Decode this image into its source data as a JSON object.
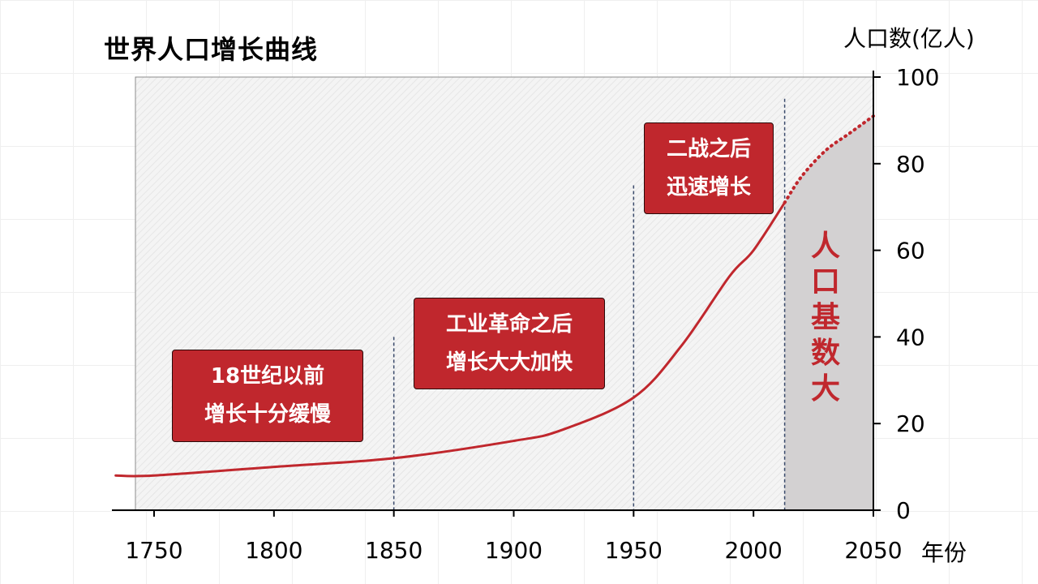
{
  "colors": {
    "accent": "#c0272d",
    "projection_fill": "#d3d1d2",
    "plot_bg": "#f4f4f4",
    "guide_line": "#3a4a6b"
  },
  "title": "世界人口增长曲线",
  "y_unit": "人口数(亿人)",
  "x_unit": "年份",
  "callouts": [
    {
      "lines": [
        "18世纪以前",
        "增长十分缓慢"
      ]
    },
    {
      "lines": [
        "工业革命之后",
        "增长大大加快"
      ]
    },
    {
      "lines": [
        "二战之后",
        "迅速增长"
      ]
    }
  ],
  "projection_note": [
    "人",
    "口",
    "基",
    "数",
    "大"
  ],
  "chart_data": {
    "type": "line",
    "title": "世界人口增长曲线",
    "xlabel": "年份",
    "ylabel": "人口数(亿人)",
    "xlim": [
      1734,
      2050
    ],
    "ylim": [
      0,
      100
    ],
    "x_ticks": [
      1750,
      1800,
      1850,
      1900,
      1950,
      2000,
      2050
    ],
    "y_ticks": [
      0,
      20,
      40,
      60,
      80,
      100
    ],
    "grid": false,
    "y_axis_side": "right",
    "guide_lines": [
      {
        "x": 1850,
        "y_top": 40
      },
      {
        "x": 1950,
        "y_top": 75
      },
      {
        "x": 2013,
        "y_top": 95
      }
    ],
    "projection_region": {
      "x_start": 2013,
      "x_end": 2050
    },
    "series": [
      {
        "style": "solid",
        "x": [
          1734,
          1750,
          1800,
          1850,
          1900,
          1920,
          1950,
          1970,
          1990,
          2000,
          2013
        ],
        "y": [
          8,
          8,
          10,
          12,
          16,
          18.5,
          26,
          38,
          54,
          60,
          71
        ]
      },
      {
        "style": "dotted",
        "x": [
          2013,
          2020,
          2030,
          2040,
          2050
        ],
        "y": [
          71,
          77,
          83,
          87,
          91
        ]
      }
    ]
  }
}
